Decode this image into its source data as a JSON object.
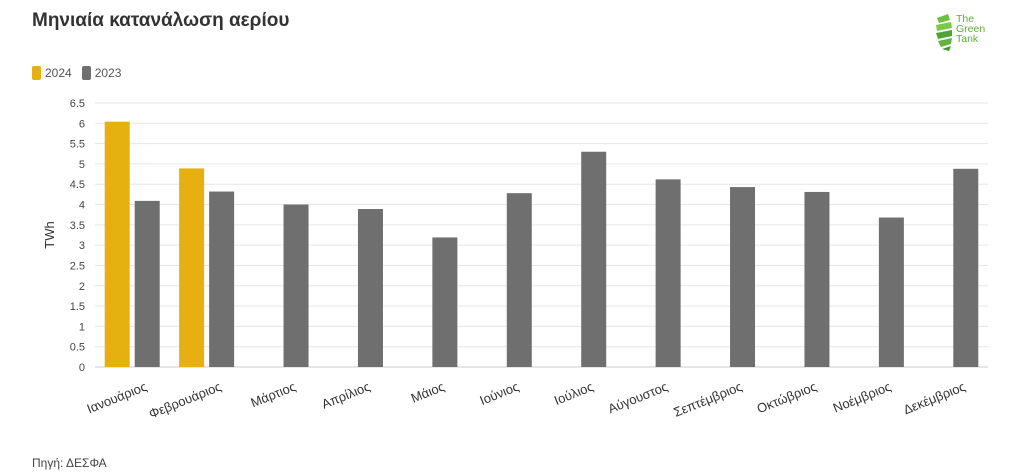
{
  "title": "Μηνιαία κατανάλωση αερίου",
  "logo": {
    "text": [
      "The",
      "Green",
      "Tank"
    ]
  },
  "source": "Πηγή: ΔΕΣΦΑ",
  "colors": {
    "2024": "#e6b010",
    "2023": "#6f6f6f"
  },
  "chart_data": {
    "type": "bar",
    "title": "Μηνιαία κατανάλωση αερίου",
    "xlabel": "",
    "ylabel": "TWh",
    "ylim": [
      0,
      6.5
    ],
    "ytick_step": 0.5,
    "grid": true,
    "legend_position": "top-left",
    "categories": [
      "Ιανουάριος",
      "Φεβρουάριος",
      "Μάρτιος",
      "Απρίλιος",
      "Μάιος",
      "Ιούνιος",
      "Ιούλιος",
      "Αύγουστος",
      "Σεπτέμβριος",
      "Οκτώβριος",
      "Νοέμβριος",
      "Δεκέμβριος"
    ],
    "series": [
      {
        "name": "2024",
        "color": "#e6b010",
        "values": [
          6.04,
          4.89,
          null,
          null,
          null,
          null,
          null,
          null,
          null,
          null,
          null,
          null
        ]
      },
      {
        "name": "2023",
        "color": "#6f6f6f",
        "values": [
          4.09,
          4.32,
          4.0,
          3.89,
          3.19,
          4.28,
          5.3,
          4.62,
          4.43,
          4.31,
          3.68,
          4.88
        ]
      }
    ]
  }
}
